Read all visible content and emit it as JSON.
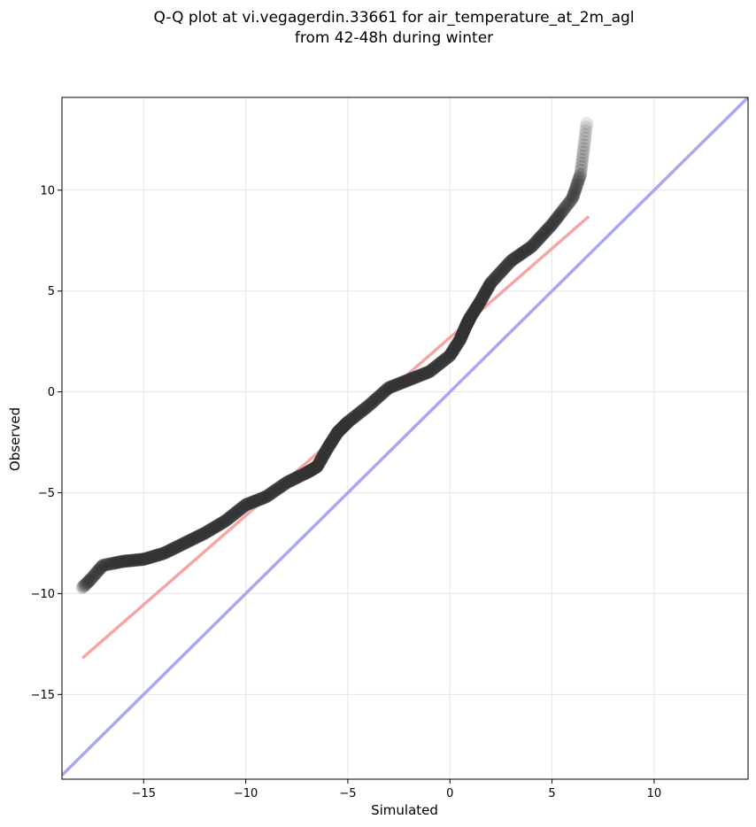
{
  "chart_data": {
    "type": "scatter",
    "title": "Q-Q plot at vi.vegagerdin.33661 for air_temperature_at_2m_agl",
    "subtitle": "from 42-48h during winter",
    "xlabel": "Simulated",
    "ylabel": "Observed",
    "xlim": [
      -19.0,
      14.6
    ],
    "ylim": [
      -19.2,
      14.6
    ],
    "xticks": [
      -15,
      -10,
      -5,
      0,
      5,
      10
    ],
    "yticks": [
      10,
      5,
      0,
      -5,
      -10,
      -15
    ],
    "xtick_labels": [
      "−15",
      "−10",
      "−5",
      "0",
      "5",
      "10"
    ],
    "ytick_labels": [
      "10",
      "5",
      "0",
      "−5",
      "−10",
      "−15"
    ],
    "grid": true,
    "colors": {
      "points": "#333333",
      "fit_line": "#f4a6a6",
      "identity_line": "#a8a8f2"
    },
    "quantile_curve": {
      "x": [
        -18.0,
        -17.6,
        -17.0,
        -16.0,
        -15.0,
        -14.0,
        -13.0,
        -12.0,
        -11.0,
        -10.0,
        -9.0,
        -8.0,
        -7.0,
        -6.5,
        -6.0,
        -5.5,
        -5.0,
        -4.0,
        -3.0,
        -2.0,
        -1.0,
        0.0,
        0.5,
        0.8,
        1.0,
        1.5,
        2.0,
        3.0,
        4.0,
        5.0,
        6.0,
        6.4,
        6.7
      ],
      "y": [
        -9.7,
        -9.3,
        -8.6,
        -8.4,
        -8.3,
        -8.0,
        -7.5,
        -7.0,
        -6.4,
        -5.6,
        -5.2,
        -4.5,
        -4.0,
        -3.7,
        -2.8,
        -2.0,
        -1.5,
        -0.7,
        0.2,
        0.6,
        1.0,
        1.8,
        2.6,
        3.3,
        3.7,
        4.5,
        5.4,
        6.5,
        7.2,
        8.3,
        9.6,
        10.8,
        13.3
      ]
    },
    "fit_line": {
      "x": [
        -18.0,
        6.8
      ],
      "y": [
        -13.2,
        8.7
      ]
    },
    "identity_line": {
      "x": [
        -19.0,
        14.6
      ],
      "y": [
        -19.0,
        14.6
      ]
    }
  }
}
